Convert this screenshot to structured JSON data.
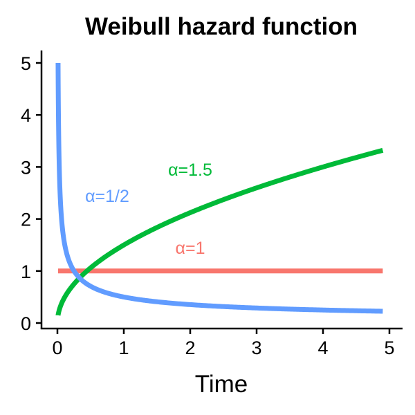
{
  "chart_data": {
    "type": "line",
    "title": "Weibull hazard function",
    "xlabel": "Time",
    "ylabel": "",
    "xlim": [
      0,
      5
    ],
    "ylim": [
      0,
      5
    ],
    "xticks": [
      "0",
      "1",
      "2",
      "3",
      "4",
      "5"
    ],
    "yticks": [
      "0",
      "1",
      "2",
      "3",
      "4",
      "5"
    ],
    "grid": false,
    "x_domain": [
      0.01,
      4.9
    ],
    "series": [
      {
        "name": "α=1/2",
        "alpha": 0.5,
        "color": "#619CFF",
        "label_at": [
          0.75,
          2.45
        ]
      },
      {
        "name": "α=1",
        "alpha": 1.0,
        "color": "#F8766D",
        "label_at": [
          2.0,
          1.45
        ]
      },
      {
        "name": "α=1.5",
        "alpha": 1.5,
        "color": "#00BA38",
        "label_at": [
          2.0,
          2.95
        ]
      }
    ],
    "sample_points": {
      "alpha_0_5": [
        [
          0.01,
          5.0
        ],
        [
          0.1,
          1.58
        ],
        [
          0.5,
          0.71
        ],
        [
          1,
          0.5
        ],
        [
          2,
          0.35
        ],
        [
          3,
          0.29
        ],
        [
          4,
          0.25
        ],
        [
          4.9,
          0.23
        ]
      ],
      "alpha_1": [
        [
          0.01,
          1.0
        ],
        [
          4.9,
          1.0
        ]
      ],
      "alpha_1_5": [
        [
          0.01,
          0.15
        ],
        [
          0.5,
          1.06
        ],
        [
          1,
          1.5
        ],
        [
          2,
          2.12
        ],
        [
          3,
          2.6
        ],
        [
          4,
          3.0
        ],
        [
          4.9,
          3.32
        ]
      ]
    }
  }
}
